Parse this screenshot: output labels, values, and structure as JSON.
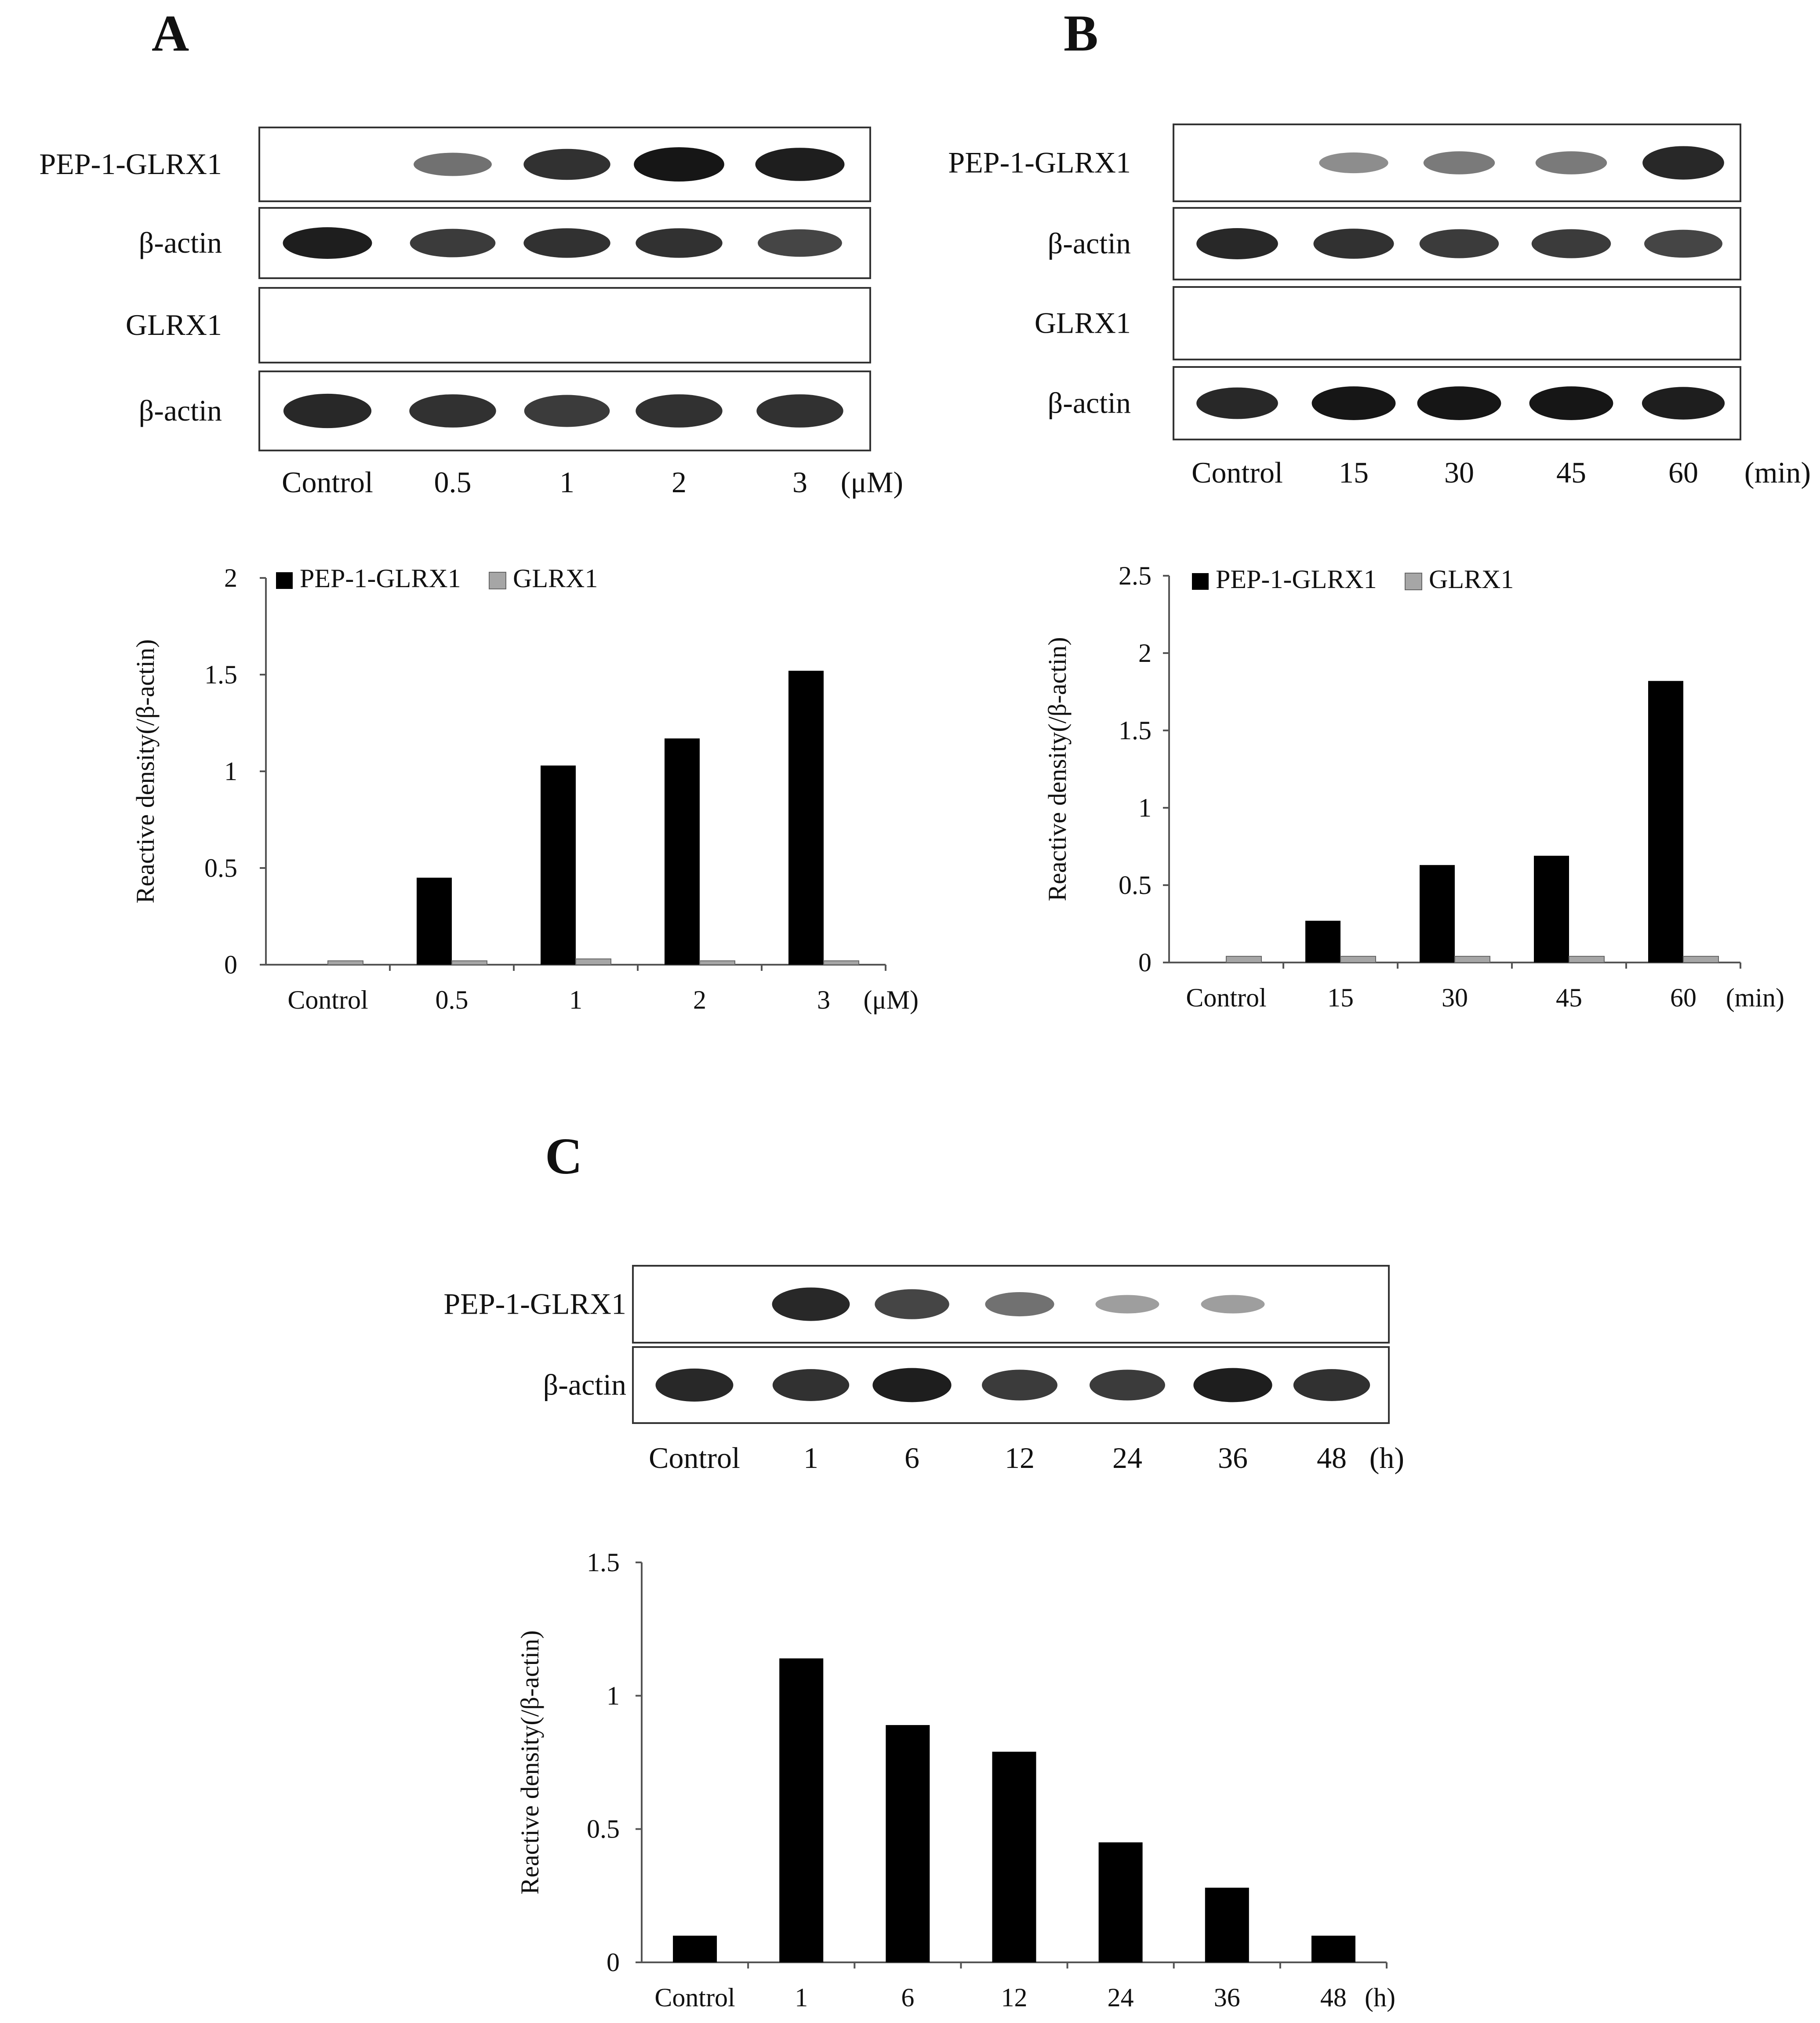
{
  "figure": {
    "panels": [
      {
        "id": "A",
        "letter": "A",
        "blot": {
          "rows": [
            {
              "label": "PEP-1-GLRX1",
              "intensity": [
                0,
                0.45,
                0.8,
                0.95,
                0.9
              ]
            },
            {
              "label": "β-actin",
              "intensity": [
                0.9,
                0.75,
                0.8,
                0.8,
                0.7
              ]
            },
            {
              "label": "GLRX1",
              "intensity": [
                0,
                0,
                0,
                0,
                0
              ]
            },
            {
              "label": "β-actin",
              "intensity": [
                0.85,
                0.8,
                0.75,
                0.8,
                0.8
              ]
            }
          ],
          "lanes": [
            "Control",
            "0.5",
            "1",
            "2",
            "3"
          ],
          "unit": "(μM)"
        }
      },
      {
        "id": "B",
        "letter": "B",
        "blot": {
          "rows": [
            {
              "label": "PEP-1-GLRX1",
              "intensity": [
                0,
                0.3,
                0.4,
                0.4,
                0.85
              ]
            },
            {
              "label": "β-actin",
              "intensity": [
                0.85,
                0.8,
                0.75,
                0.75,
                0.7
              ]
            },
            {
              "label": "GLRX1",
              "intensity": [
                0,
                0,
                0,
                0,
                0
              ]
            },
            {
              "label": "β-actin",
              "intensity": [
                0.85,
                0.95,
                0.95,
                0.95,
                0.9
              ]
            }
          ],
          "lanes": [
            "Control",
            "15",
            "30",
            "45",
            "60"
          ],
          "unit": "(min)"
        }
      },
      {
        "id": "C",
        "letter": "C",
        "blot": {
          "rows": [
            {
              "label": "PEP-1-GLRX1",
              "intensity": [
                0,
                0.85,
                0.7,
                0.45,
                0.2,
                0.2,
                0
              ]
            },
            {
              "label": "β-actin",
              "intensity": [
                0.85,
                0.8,
                0.9,
                0.75,
                0.75,
                0.9,
                0.8
              ]
            }
          ],
          "lanes": [
            "Control",
            "1",
            "6",
            "12",
            "24",
            "36",
            "48"
          ],
          "unit": "(h)"
        }
      }
    ]
  },
  "chart_data": [
    {
      "type": "bar",
      "panel": "A",
      "categories": [
        "Control",
        "0.5",
        "1",
        "2",
        "3"
      ],
      "unit_label": "(μM)",
      "series": [
        {
          "name": "PEP-1-GLRX1",
          "values": [
            0,
            0.45,
            1.03,
            1.17,
            1.52
          ],
          "color": "#000000"
        },
        {
          "name": "GLRX1",
          "values": [
            0.02,
            0.02,
            0.03,
            0.02,
            0.02
          ],
          "color": "#a6a6a6"
        }
      ],
      "ylabel": "Reactive density(/β-actin)",
      "ylim": [
        0,
        2
      ],
      "yticks": [
        "0",
        "0.5",
        "1",
        "1.5",
        "2"
      ],
      "legend": "top"
    },
    {
      "type": "bar",
      "panel": "B",
      "categories": [
        "Control",
        "15",
        "30",
        "45",
        "60"
      ],
      "unit_label": "(min)",
      "series": [
        {
          "name": "PEP-1-GLRX1",
          "values": [
            0,
            0.27,
            0.63,
            0.69,
            1.82
          ],
          "color": "#000000"
        },
        {
          "name": "GLRX1",
          "values": [
            0.04,
            0.04,
            0.04,
            0.04,
            0.04
          ],
          "color": "#a6a6a6"
        }
      ],
      "ylabel": "Reactive density(/β-actin)",
      "ylim": [
        0,
        2.5
      ],
      "yticks": [
        "0",
        "0.5",
        "1",
        "1.5",
        "2",
        "2.5"
      ],
      "legend": "top"
    },
    {
      "type": "bar",
      "panel": "C",
      "categories": [
        "Control",
        "1",
        "6",
        "12",
        "24",
        "36",
        "48"
      ],
      "unit_label": "(h)",
      "series": [
        {
          "values": [
            0.1,
            1.14,
            0.89,
            0.79,
            0.45,
            0.28,
            0.1
          ],
          "color": "#000000"
        }
      ],
      "ylabel": "Reactive density(/β-actin)",
      "ylim": [
        0,
        1.5
      ],
      "yticks": [
        "0",
        "0.5",
        "1",
        "1.5"
      ],
      "legend": "none"
    }
  ]
}
